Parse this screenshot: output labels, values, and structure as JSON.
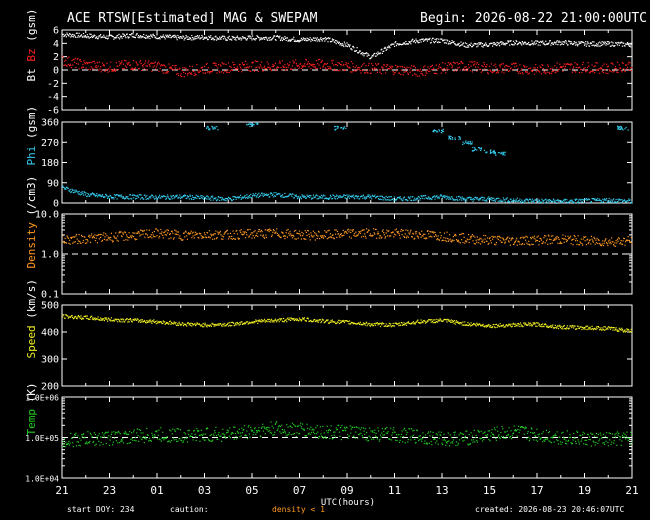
{
  "header": {
    "title": "ACE RTSW[Estimated] MAG & SWEPAM",
    "begin": "Begin: 2026-08-22 21:00:00UTC"
  },
  "footer": {
    "start_doy": "start DOY: 234",
    "caution": "caution:",
    "density_note": "density < 1",
    "created": "created: 2026-08-23 20:46:07UTC"
  },
  "colors": {
    "bt": "#ffffff",
    "bz": "#ff2020",
    "phi": "#33ccee",
    "density": "#ff9922",
    "speed": "#eeee22",
    "temp": "#22cc22",
    "axis": "#ffffff",
    "background": "#000000"
  },
  "chart_data": [
    {
      "type": "scatter",
      "ylabel_parts": [
        "Bt",
        "Bz",
        "(gsm)"
      ],
      "ylim": [
        -6,
        6
      ],
      "yticks": [
        "6",
        "4",
        "2",
        "0",
        "-2",
        "-4",
        "-6"
      ],
      "ytick_values": [
        6,
        4,
        2,
        0,
        -2,
        -4,
        -6
      ],
      "reference_line": 0,
      "x": [
        0,
        1,
        2,
        3,
        4,
        5,
        6,
        7,
        8,
        9,
        10,
        11,
        12,
        13,
        14,
        15,
        16,
        17,
        18,
        19,
        20,
        21,
        22,
        23,
        24
      ],
      "series": [
        {
          "values": [
            5.4,
            5.2,
            5.0,
            5.3,
            5.1,
            4.9,
            5.0,
            4.8,
            4.9,
            4.9,
            4.6,
            4.8,
            3.8,
            2.0,
            4.0,
            4.5,
            4.5,
            3.8,
            3.9,
            4.2,
            4.1,
            4.2,
            4.0,
            4.0,
            3.9
          ]
        },
        {
          "values": [
            1.5,
            0.8,
            0.5,
            0.9,
            0.6,
            -0.2,
            0.3,
            0.5,
            0.7,
            0.6,
            0.9,
            0.9,
            0.6,
            0.3,
            0.2,
            -0.1,
            0.4,
            0.7,
            0.3,
            0.4,
            0.1,
            0.5,
            0.5,
            0.3,
            0.8
          ]
        }
      ]
    },
    {
      "type": "scatter",
      "ylabel_parts": [
        "Phi",
        "(gsm)"
      ],
      "ylim": [
        0,
        360
      ],
      "yticks": [
        "360",
        "270",
        "180",
        "90",
        "0"
      ],
      "ytick_values": [
        360,
        270,
        180,
        90,
        0
      ],
      "x": [
        0,
        1,
        2,
        3,
        4,
        5,
        6,
        7,
        8,
        9,
        10,
        11,
        12,
        13,
        14,
        15,
        16,
        17,
        18,
        19,
        20,
        21,
        22,
        23,
        24
      ],
      "series": [
        {
          "values": [
            70,
            40,
            30,
            30,
            28,
            30,
            25,
            20,
            35,
            40,
            30,
            28,
            30,
            30,
            20,
            25,
            30,
            20,
            20,
            15,
            12,
            10,
            12,
            15,
            10
          ]
        }
      ],
      "upper_points": [
        {
          "x": 6.3,
          "y": 345
        },
        {
          "x": 8.0,
          "y": 360
        },
        {
          "x": 11.7,
          "y": 345
        },
        {
          "x": 15.8,
          "y": 330
        },
        {
          "x": 16.5,
          "y": 300
        },
        {
          "x": 17.0,
          "y": 280
        },
        {
          "x": 17.5,
          "y": 250
        },
        {
          "x": 18.0,
          "y": 240
        },
        {
          "x": 18.4,
          "y": 230
        },
        {
          "x": 23.6,
          "y": 345
        }
      ]
    },
    {
      "type": "scatter",
      "ylabel_parts": [
        "Density",
        "(/cm3)"
      ],
      "ylim": [
        0.1,
        10
      ],
      "log": true,
      "yticks": [
        "10.0",
        "1.0",
        "0.1"
      ],
      "ytick_values": [
        10,
        1,
        0.1
      ],
      "reference_line": 1.0,
      "x": [
        0,
        1,
        2,
        3,
        4,
        5,
        6,
        7,
        8,
        9,
        10,
        11,
        12,
        13,
        14,
        15,
        16,
        17,
        18,
        19,
        20,
        21,
        22,
        23,
        24
      ],
      "series": [
        {
          "values": [
            2.3,
            2.5,
            2.7,
            3.0,
            3.4,
            3.0,
            3.2,
            3.1,
            3.3,
            3.4,
            3.1,
            3.0,
            3.3,
            3.4,
            3.3,
            3.2,
            2.9,
            2.5,
            2.3,
            2.2,
            2.3,
            2.4,
            2.2,
            2.1,
            2.2
          ]
        }
      ]
    },
    {
      "type": "scatter",
      "ylabel_parts": [
        "Speed",
        "(km/s)"
      ],
      "ylim": [
        200,
        500
      ],
      "yticks": [
        "500",
        "400",
        "300",
        "200"
      ],
      "ytick_values": [
        500,
        400,
        300,
        200
      ],
      "x": [
        0,
        1,
        2,
        3,
        4,
        5,
        6,
        7,
        8,
        9,
        10,
        11,
        12,
        13,
        14,
        15,
        16,
        17,
        18,
        19,
        20,
        21,
        22,
        23,
        24
      ],
      "series": [
        {
          "values": [
            460,
            455,
            448,
            445,
            440,
            432,
            428,
            430,
            440,
            445,
            450,
            442,
            438,
            430,
            428,
            440,
            445,
            432,
            425,
            428,
            430,
            420,
            418,
            415,
            405
          ]
        }
      ]
    },
    {
      "type": "scatter",
      "ylabel_parts": [
        "Temp",
        "(K)"
      ],
      "ylim": [
        10000,
        1000000
      ],
      "log": true,
      "yticks": [
        "1.0E+06",
        "1.0E+05",
        "1.0E+04"
      ],
      "ytick_values": [
        1000000,
        100000,
        10000
      ],
      "reference_line": 100000,
      "xticks": [
        "21",
        "23",
        "01",
        "03",
        "05",
        "07",
        "09",
        "11",
        "13",
        "15",
        "17",
        "19",
        "21"
      ],
      "xtick_values": [
        0,
        2,
        4,
        6,
        8,
        10,
        12,
        14,
        16,
        18,
        20,
        22,
        24
      ],
      "xlabel": "UTC(hours)",
      "x": [
        0,
        1,
        2,
        3,
        4,
        5,
        6,
        7,
        8,
        9,
        10,
        11,
        12,
        13,
        14,
        15,
        16,
        17,
        18,
        19,
        20,
        21,
        22,
        23,
        24
      ],
      "series": [
        {
          "values": [
            85000,
            95000,
            100000,
            110000,
            120000,
            115000,
            120000,
            125000,
            150000,
            170000,
            160000,
            140000,
            135000,
            125000,
            120000,
            110000,
            95000,
            100000,
            120000,
            140000,
            120000,
            105000,
            95000,
            90000,
            100000
          ]
        }
      ]
    }
  ]
}
